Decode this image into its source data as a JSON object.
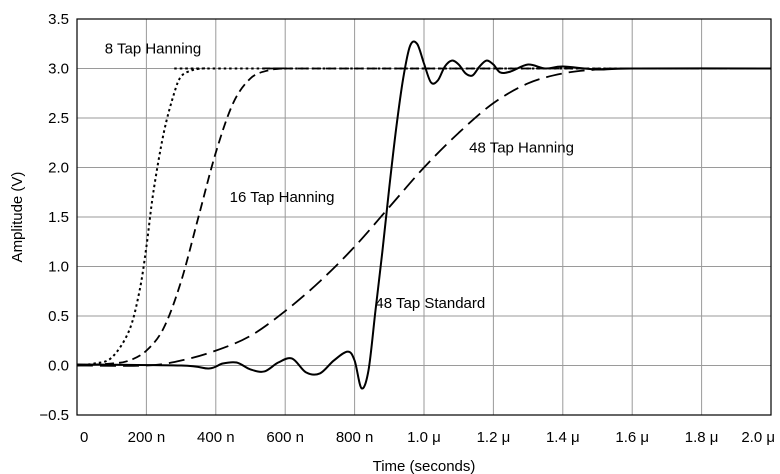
{
  "chart_data": {
    "type": "line",
    "title": "",
    "xlabel": "Time (seconds)",
    "ylabel": "Amplitude (V)",
    "xlim": [
      0,
      2.0
    ],
    "ylim": [
      -0.5,
      3.5
    ],
    "grid": true,
    "x_ticks": [
      {
        "value": 0.0,
        "label": "0"
      },
      {
        "value": 0.2,
        "label": "200 n"
      },
      {
        "value": 0.4,
        "label": "400 n"
      },
      {
        "value": 0.6,
        "label": "600 n"
      },
      {
        "value": 0.8,
        "label": "800 n"
      },
      {
        "value": 1.0,
        "label": "1.0 μ"
      },
      {
        "value": 1.2,
        "label": "1.2 μ"
      },
      {
        "value": 1.4,
        "label": "1.4 μ"
      },
      {
        "value": 1.6,
        "label": "1.6 μ"
      },
      {
        "value": 1.8,
        "label": "1.8 μ"
      },
      {
        "value": 2.0,
        "label": "2.0 μ"
      }
    ],
    "y_ticks": [
      {
        "value": -0.5,
        "label": "−0.5"
      },
      {
        "value": 0.0,
        "label": "0.0"
      },
      {
        "value": 0.5,
        "label": "0.5"
      },
      {
        "value": 1.0,
        "label": "1.0"
      },
      {
        "value": 1.5,
        "label": "1.5"
      },
      {
        "value": 2.0,
        "label": "2.0"
      },
      {
        "value": 2.5,
        "label": "2.5"
      },
      {
        "value": 3.0,
        "label": "3.0"
      },
      {
        "value": 3.5,
        "label": "3.5"
      }
    ],
    "series": [
      {
        "name": "8 Tap Hanning",
        "style": "dotted",
        "x": [
          0,
          0.05,
          0.1,
          0.15,
          0.18,
          0.2,
          0.22,
          0.25,
          0.28,
          0.3,
          0.33,
          0.36,
          0.38,
          0.4,
          2.0
        ],
        "y": [
          0.0,
          0.02,
          0.08,
          0.35,
          0.75,
          1.2,
          1.75,
          2.35,
          2.75,
          2.92,
          2.98,
          3.0,
          3.0,
          3.0,
          3.0
        ]
      },
      {
        "name": "16 Tap Hanning",
        "style": "dashed",
        "x": [
          0,
          0.1,
          0.15,
          0.2,
          0.25,
          0.3,
          0.35,
          0.4,
          0.45,
          0.5,
          0.55,
          0.6,
          0.65,
          2.0
        ],
        "y": [
          0.0,
          0.02,
          0.05,
          0.15,
          0.38,
          0.85,
          1.5,
          2.15,
          2.65,
          2.9,
          2.98,
          3.0,
          3.0,
          3.0
        ]
      },
      {
        "name": "48 Tap Hanning",
        "style": "long-dashed",
        "x": [
          0,
          0.2,
          0.3,
          0.4,
          0.5,
          0.6,
          0.7,
          0.8,
          0.9,
          1.0,
          1.1,
          1.2,
          1.3,
          1.4,
          1.5,
          1.6,
          2.0
        ],
        "y": [
          0.0,
          0.0,
          0.05,
          0.15,
          0.3,
          0.55,
          0.85,
          1.2,
          1.6,
          2.0,
          2.35,
          2.65,
          2.85,
          2.95,
          2.99,
          3.0,
          3.0
        ]
      },
      {
        "name": "48 Tap Standard",
        "style": "solid",
        "x": [
          0,
          0.3,
          0.38,
          0.42,
          0.46,
          0.5,
          0.54,
          0.58,
          0.62,
          0.66,
          0.7,
          0.74,
          0.78,
          0.8,
          0.82,
          0.84,
          0.86,
          0.88,
          0.9,
          0.92,
          0.94,
          0.96,
          0.98,
          1.0,
          1.02,
          1.04,
          1.06,
          1.08,
          1.1,
          1.12,
          1.14,
          1.16,
          1.18,
          1.2,
          1.22,
          1.25,
          1.3,
          1.35,
          1.4,
          1.5,
          1.6,
          2.0
        ],
        "y": [
          0.01,
          0.0,
          -0.03,
          0.02,
          0.03,
          -0.04,
          -0.06,
          0.03,
          0.07,
          -0.07,
          -0.08,
          0.05,
          0.14,
          0.05,
          -0.23,
          -0.05,
          0.55,
          1.15,
          1.8,
          2.4,
          2.9,
          3.23,
          3.25,
          3.05,
          2.86,
          2.88,
          3.02,
          3.08,
          3.04,
          2.95,
          2.93,
          3.02,
          3.08,
          3.04,
          2.96,
          2.97,
          3.04,
          3.0,
          3.02,
          2.99,
          3.0,
          3.0
        ]
      }
    ],
    "annotations": [
      {
        "text": "8 Tap Hanning",
        "x": 0.08,
        "y": 3.2
      },
      {
        "text": "16 Tap Hanning",
        "x": 0.44,
        "y": 1.7
      },
      {
        "text": "48 Tap Hanning",
        "x": 1.13,
        "y": 2.2
      },
      {
        "text": "48 Tap Standard",
        "x": 0.86,
        "y": 0.63
      }
    ]
  }
}
